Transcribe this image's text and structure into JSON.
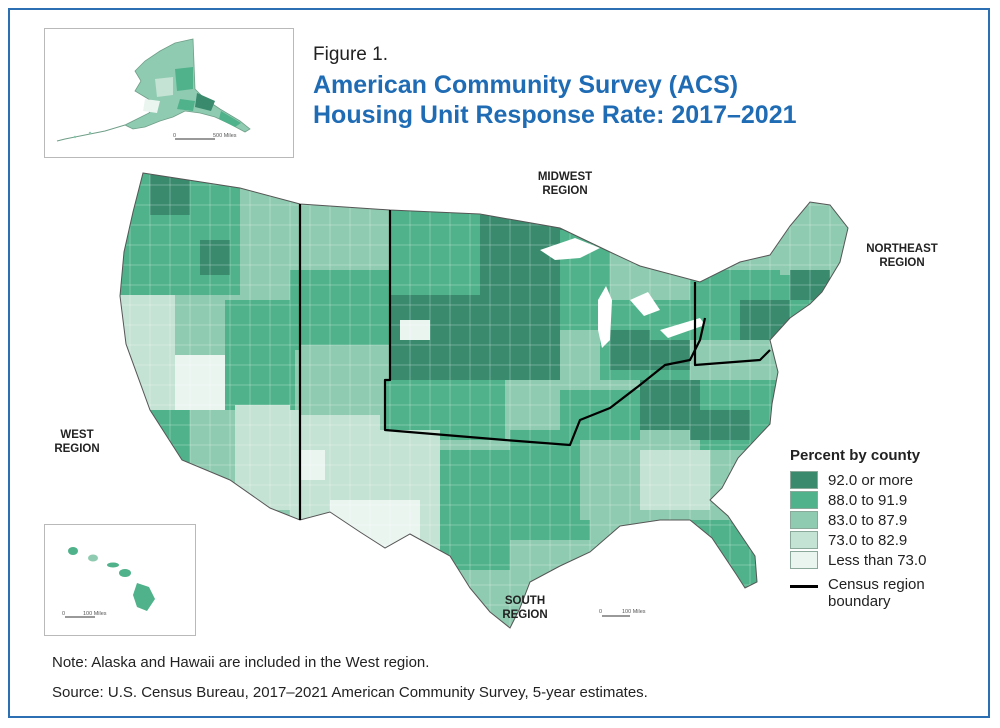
{
  "figure_label": "Figure 1.",
  "title": "American Community Survey (ACS) Housing Unit Response Rate: 2017–2021",
  "regions": {
    "midwest": "MIDWEST\nREGION",
    "northeast": "NORTHEAST\nREGION",
    "west": "WEST\nREGION",
    "south": "SOUTH\nREGION"
  },
  "legend": {
    "title": "Percent by county",
    "items": [
      {
        "label": "92.0 or more",
        "color": "#3a8a6e"
      },
      {
        "label": "88.0 to 91.9",
        "color": "#4fb28a"
      },
      {
        "label": "83.0 to 87.9",
        "color": "#8fcbb0"
      },
      {
        "label": "73.0 to 82.9",
        "color": "#c4e3d5"
      },
      {
        "label": "Less than 73.0",
        "color": "#eaf5f0"
      }
    ],
    "boundary_label": "Census region boundary"
  },
  "insets": {
    "alaska_scale": {
      "zero": "0",
      "distance": "500 Miles"
    },
    "hawaii_scale": {
      "zero": "0",
      "distance": "100 Miles"
    },
    "mainland_scale": {
      "zero": "0",
      "distance": "100 Miles"
    }
  },
  "note": "Note: Alaska and Hawaii are included in the West region.",
  "source": "Source: U.S. Census Bureau, 2017–2021 American Community Survey, 5-year estimates."
}
